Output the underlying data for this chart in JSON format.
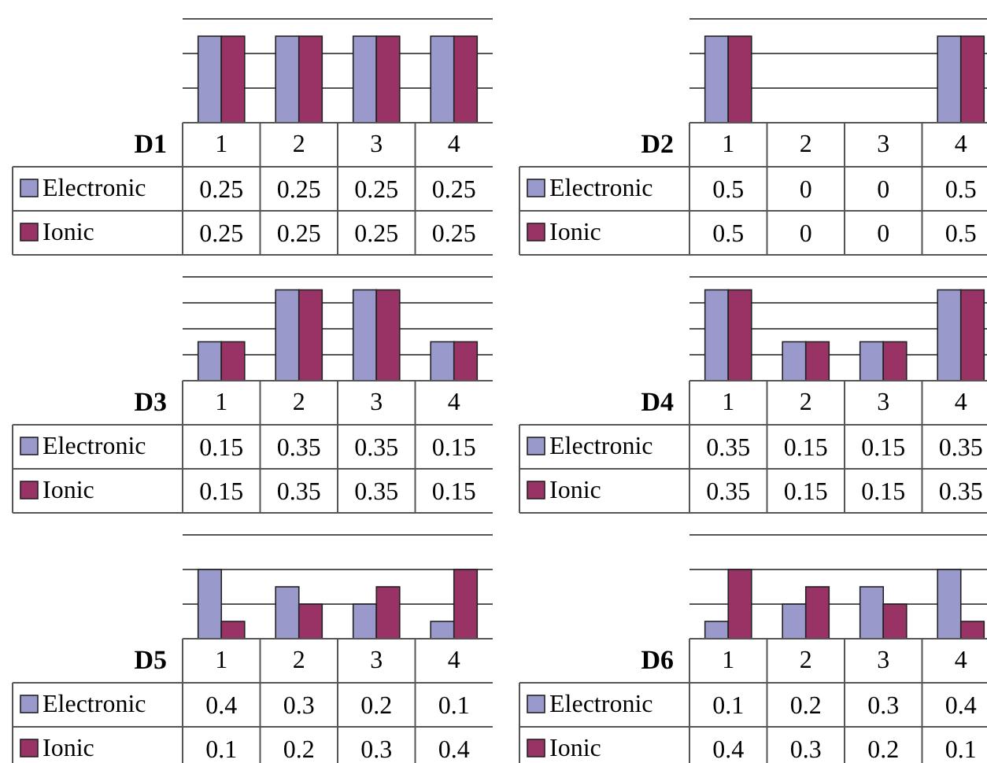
{
  "chart_data": [
    {
      "type": "bar",
      "title": "D1",
      "categories": [
        "1",
        "2",
        "3",
        "4"
      ],
      "series": [
        {
          "name": "Electronic",
          "color": "#9999cc",
          "values": [
            0.25,
            0.25,
            0.25,
            0.25
          ]
        },
        {
          "name": "Ionic",
          "color": "#993366",
          "values": [
            0.25,
            0.25,
            0.25,
            0.25
          ]
        }
      ],
      "ylim": [
        0,
        0.3
      ],
      "yticks": [
        {
          "value": 0.1,
          "label": null
        },
        {
          "value": 0.2,
          "label": null
        },
        {
          "value": 0.3,
          "label": null
        }
      ],
      "grid": "y",
      "tick_labels": "x",
      "data_labels": true,
      "legend": "bottom"
    },
    {
      "type": "bar",
      "title": "D2",
      "categories": [
        "1",
        "2",
        "3",
        "4"
      ],
      "series": [
        {
          "name": "Electronic",
          "color": "#9999cc",
          "values": [
            0.5,
            0,
            0,
            0.5
          ]
        },
        {
          "name": "Ionic",
          "color": "#993366",
          "values": [
            0.5,
            0,
            0,
            0.5
          ]
        }
      ],
      "ylim": [
        0,
        0.6
      ],
      "yticks": [
        {
          "value": 0.2,
          "label": null
        },
        {
          "value": 0.4,
          "label": null
        },
        {
          "value": 0.6,
          "label": null
        }
      ],
      "grid": "y",
      "tick_labels": "x",
      "data_labels": true,
      "legend": "bottom"
    },
    {
      "type": "bar",
      "title": "D3",
      "categories": [
        "1",
        "2",
        "3",
        "4"
      ],
      "series": [
        {
          "name": "Electronic",
          "color": "#9999cc",
          "values": [
            0.15,
            0.35,
            0.35,
            0.15
          ]
        },
        {
          "name": "Ionic",
          "color": "#993366",
          "values": [
            0.15,
            0.35,
            0.35,
            0.15
          ]
        }
      ],
      "ylim": [
        0,
        0.4
      ],
      "yticks": [
        {
          "value": 0.1,
          "label": null
        },
        {
          "value": 0.2,
          "label": null
        },
        {
          "value": 0.3,
          "label": null
        },
        {
          "value": 0.4,
          "label": null
        }
      ],
      "grid": "y",
      "tick_labels": "x",
      "data_labels": true,
      "legend": "bottom"
    },
    {
      "type": "bar",
      "title": "D4",
      "categories": [
        "1",
        "2",
        "3",
        "4"
      ],
      "series": [
        {
          "name": "Electronic",
          "color": "#9999cc",
          "values": [
            0.35,
            0.15,
            0.15,
            0.35
          ]
        },
        {
          "name": "Ionic",
          "color": "#993366",
          "values": [
            0.35,
            0.15,
            0.15,
            0.35
          ]
        }
      ],
      "ylim": [
        0,
        0.4
      ],
      "yticks": [
        {
          "value": 0.1,
          "label": null
        },
        {
          "value": 0.2,
          "label": null
        },
        {
          "value": 0.3,
          "label": null
        },
        {
          "value": 0.4,
          "label": null
        }
      ],
      "grid": "y",
      "tick_labels": "x",
      "data_labels": true,
      "legend": "bottom"
    },
    {
      "type": "bar",
      "title": "D5",
      "categories": [
        "1",
        "2",
        "3",
        "4"
      ],
      "series": [
        {
          "name": "Electronic",
          "color": "#9999cc",
          "values": [
            0.4,
            0.3,
            0.2,
            0.1
          ]
        },
        {
          "name": "Ionic",
          "color": "#993366",
          "values": [
            0.1,
            0.2,
            0.3,
            0.4
          ]
        }
      ],
      "ylim": [
        0,
        0.6
      ],
      "yticks": [
        {
          "value": 0.2,
          "label": null
        },
        {
          "value": 0.4,
          "label": null
        },
        {
          "value": 0.6,
          "label": null
        }
      ],
      "grid": "y",
      "tick_labels": "x",
      "data_labels": true,
      "legend": "bottom"
    },
    {
      "type": "bar",
      "title": "D6",
      "categories": [
        "1",
        "2",
        "3",
        "4"
      ],
      "series": [
        {
          "name": "Electronic",
          "color": "#9999cc",
          "values": [
            0.1,
            0.2,
            0.3,
            0.4
          ]
        },
        {
          "name": "Ionic",
          "color": "#993366",
          "values": [
            0.4,
            0.3,
            0.2,
            0.1
          ]
        }
      ],
      "ylim": [
        0,
        0.6
      ],
      "yticks": [
        {
          "value": 0.2,
          "label": null
        },
        {
          "value": 0.4,
          "label": null
        },
        {
          "value": 0.6,
          "label": null
        }
      ],
      "grid": "y",
      "tick_labels": "x",
      "data_labels": true,
      "legend": "bottom"
    }
  ]
}
